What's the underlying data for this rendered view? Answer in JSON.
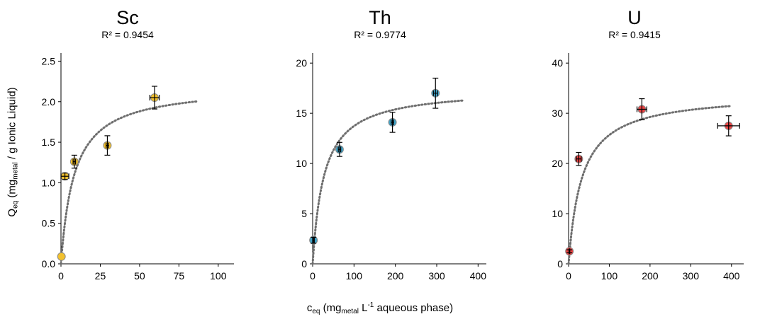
{
  "figure": {
    "ylabel": {
      "main": "Q",
      "sub1": "eq",
      "open": " (mg",
      "sub2": "metal",
      "rest": " / g Ionic Liquid)"
    },
    "xlabel": {
      "main": "c",
      "sub1": "eq",
      "open": " (mg",
      "sub2": "metal",
      "mid": " L",
      "sup": "-1",
      "rest": " aqueous phase)"
    }
  },
  "chart_data": [
    {
      "type": "scatter",
      "title": "Sc",
      "subtitle": "R² = 0.9454",
      "color": "#F2C12E",
      "xlim": [
        0,
        110
      ],
      "ylim": [
        0,
        2.6
      ],
      "xticks": [
        0,
        25,
        50,
        75,
        100
      ],
      "yticks": [
        0.0,
        0.5,
        1.0,
        1.5,
        2.0,
        2.5
      ],
      "xtick_labels": [
        "0",
        "25",
        "50",
        "75",
        "100"
      ],
      "ytick_labels": [
        "0.0",
        "0.5",
        "1.0",
        "1.5",
        "2.0",
        "2.5"
      ],
      "points": [
        {
          "x": 0.3,
          "y": 0.09,
          "xerr": 0,
          "yerr": 0
        },
        {
          "x": 2.5,
          "y": 1.08,
          "xerr": 2.5,
          "yerr": 0.04
        },
        {
          "x": 8.5,
          "y": 1.26,
          "xerr": 0.8,
          "yerr": 0.08
        },
        {
          "x": 29.5,
          "y": 1.46,
          "xerr": 0.8,
          "yerr": 0.12
        },
        {
          "x": 59.5,
          "y": 2.05,
          "xerr": 3,
          "yerr": 0.14
        }
      ],
      "fit": {
        "type": "langmuir",
        "qmax": 2.2,
        "K": 0.118,
        "x_end": 86
      },
      "grid": false
    },
    {
      "type": "scatter",
      "title": "Th",
      "subtitle": "R² = 0.9774",
      "color": "#41A4C8",
      "xlim": [
        0,
        420
      ],
      "ylim": [
        0,
        21
      ],
      "xticks": [
        0,
        100,
        200,
        300,
        400
      ],
      "yticks": [
        0,
        5,
        10,
        15,
        20
      ],
      "xtick_labels": [
        "0",
        "100",
        "200",
        "300",
        "400"
      ],
      "ytick_labels": [
        "0",
        "5",
        "10",
        "15",
        "20"
      ],
      "points": [
        {
          "x": 2,
          "y": 2.35,
          "xerr": 2,
          "yerr": 0.3
        },
        {
          "x": 65,
          "y": 11.4,
          "xerr": 3,
          "yerr": 0.7
        },
        {
          "x": 193,
          "y": 14.1,
          "xerr": 3,
          "yerr": 1.0
        },
        {
          "x": 297,
          "y": 17.0,
          "xerr": 5,
          "yerr": 1.5
        }
      ],
      "fit": {
        "type": "langmuir",
        "qmax": 17.5,
        "K": 0.0364,
        "x_end": 365
      },
      "grid": false
    },
    {
      "type": "scatter",
      "title": "U",
      "subtitle": "R² = 0.9415",
      "color": "#E84545",
      "xlim": [
        0,
        430
      ],
      "ylim": [
        0,
        42
      ],
      "xticks": [
        0,
        100,
        200,
        300,
        400
      ],
      "yticks": [
        0,
        10,
        20,
        30,
        40
      ],
      "xtick_labels": [
        "0",
        "100",
        "200",
        "300",
        "400"
      ],
      "ytick_labels": [
        "0",
        "10",
        "20",
        "30",
        "40"
      ],
      "points": [
        {
          "x": 2,
          "y": 2.5,
          "xerr": 1,
          "yerr": 0.3
        },
        {
          "x": 25,
          "y": 20.9,
          "xerr": 6,
          "yerr": 1.3
        },
        {
          "x": 180,
          "y": 30.8,
          "xerr": 12,
          "yerr": 2.1
        },
        {
          "x": 393,
          "y": 27.5,
          "xerr": 27,
          "yerr": 2.0
        }
      ],
      "fit": {
        "type": "langmuir",
        "qmax": 34.0,
        "K": 0.0308,
        "x_end": 400
      },
      "grid": false
    }
  ]
}
